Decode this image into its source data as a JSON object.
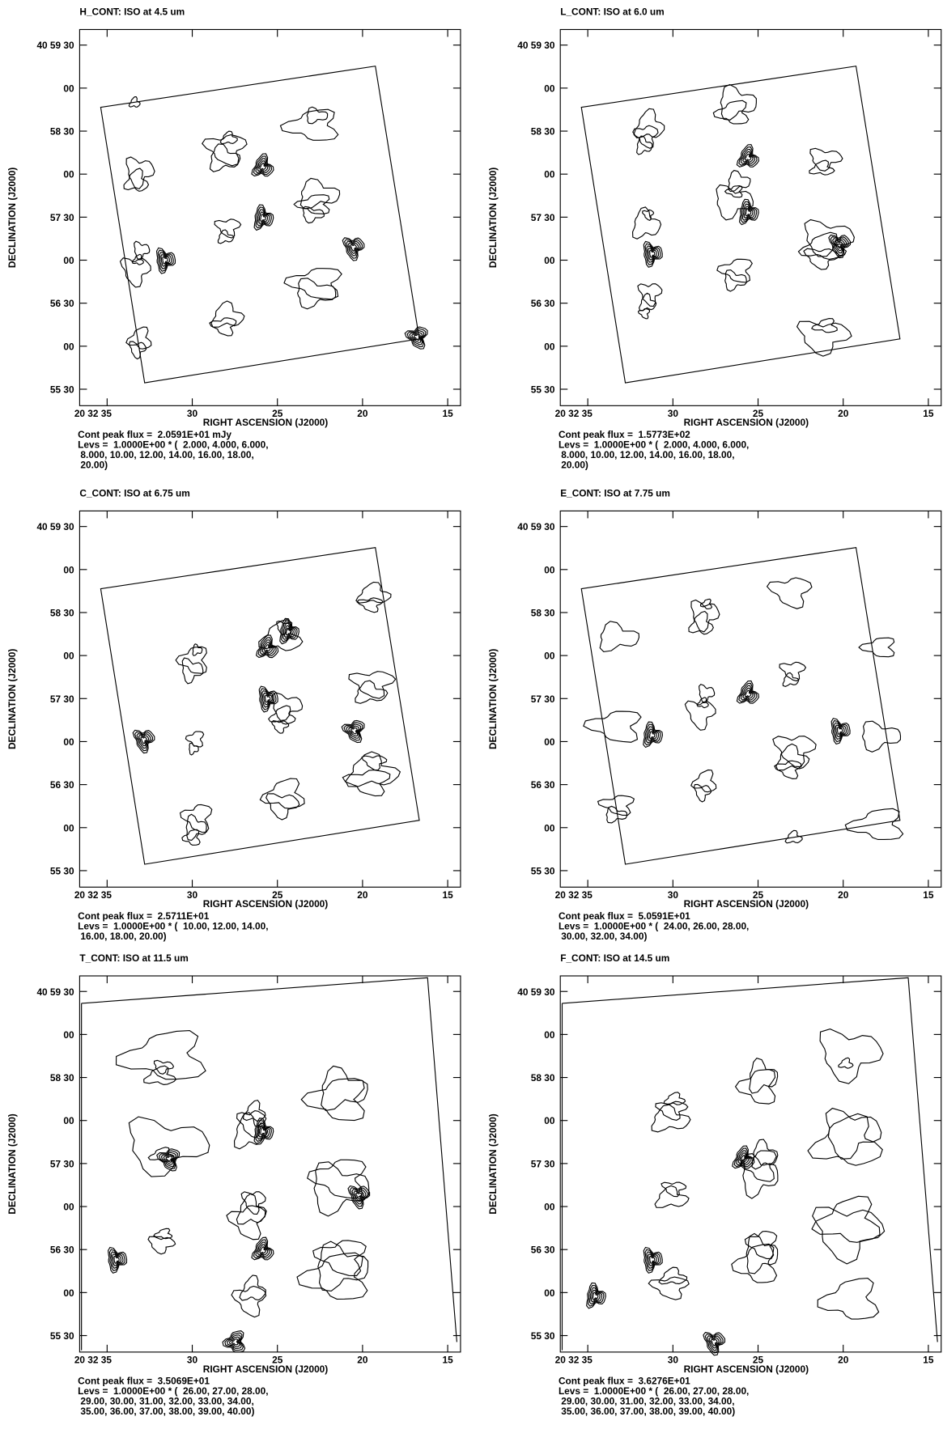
{
  "panels": [
    {
      "title": "H_CONT: ISO at 4.5 um",
      "y_axis_label": "DECLINATION (J2000)",
      "x_axis_label": "RIGHT ASCENSION (J2000)",
      "yticks": [
        "40 59 30",
        "00",
        "58 30",
        "00",
        "57 30",
        "00",
        "56 30",
        "00",
        "55 30"
      ],
      "xticks": [
        "20 32 35",
        "30",
        "25",
        "20",
        "15"
      ],
      "footer": [
        "Cont peak flux =  2.0591E+01 mJy",
        "Levs =  1.0000E+00 * (  2.000, 4.000, 6.000,",
        " 8.000, 10.00, 12.00, 14.00, 16.00, 18.00,",
        " 20.00)"
      ]
    },
    {
      "title": "L_CONT: ISO at 6.0 um",
      "y_axis_label": "DECLINATION (J2000)",
      "x_axis_label": "RIGHT ASCENSION (J2000)",
      "yticks": [
        "40 59 30",
        "00",
        "58 30",
        "00",
        "57 30",
        "00",
        "56 30",
        "00",
        "55 30"
      ],
      "xticks": [
        "20 32 35",
        "30",
        "25",
        "20",
        "15"
      ],
      "footer": [
        "Cont peak flux =  1.5773E+02",
        "Levs =  1.0000E+00 * (  2.000, 4.000, 6.000,",
        " 8.000, 10.00, 12.00, 14.00, 16.00, 18.00,",
        " 20.00)"
      ]
    },
    {
      "title": "C_CONT: ISO at 6.75 um",
      "y_axis_label": "DECLINATION (J2000)",
      "x_axis_label": "RIGHT ASCENSION (J2000)",
      "yticks": [
        "40 59 30",
        "00",
        "58 30",
        "00",
        "57 30",
        "00",
        "56 30",
        "00",
        "55 30"
      ],
      "xticks": [
        "20 32 35",
        "30",
        "25",
        "20",
        "15"
      ],
      "footer": [
        "Cont peak flux =  2.5711E+01",
        "Levs =  1.0000E+00 * (  10.00, 12.00, 14.00,",
        " 16.00, 18.00, 20.00)"
      ]
    },
    {
      "title": "E_CONT: ISO at 7.75 um",
      "y_axis_label": "DECLINATION (J2000)",
      "x_axis_label": "RIGHT ASCENSION (J2000)",
      "yticks": [
        "40 59 30",
        "00",
        "58 30",
        "00",
        "57 30",
        "00",
        "56 30",
        "00",
        "55 30"
      ],
      "xticks": [
        "20 32 35",
        "30",
        "25",
        "20",
        "15"
      ],
      "footer": [
        "Cont peak flux =  5.0591E+01",
        "Levs =  1.0000E+00 * (  24.00, 26.00, 28.00,",
        " 30.00, 32.00, 34.00)"
      ]
    },
    {
      "title": "T_CONT: ISO at 11.5 um",
      "y_axis_label": "DECLINATION (J2000)",
      "x_axis_label": "RIGHT ASCENSION (J2000)",
      "yticks": [
        "40 59 30",
        "00",
        "58 30",
        "00",
        "57 30",
        "00",
        "56 30",
        "00",
        "55 30"
      ],
      "xticks": [
        "20 32 35",
        "30",
        "25",
        "20",
        "15"
      ],
      "footer": [
        "Cont peak flux =  3.5069E+01",
        "Levs =  1.0000E+00 * (  26.00, 27.00, 28.00,",
        " 29.00, 30.00, 31.00, 32.00, 33.00, 34.00,",
        " 35.00, 36.00, 37.00, 38.00, 39.00, 40.00)"
      ]
    },
    {
      "title": "F_CONT: ISO at 14.5 um",
      "y_axis_label": "DECLINATION (J2000)",
      "x_axis_label": "RIGHT ASCENSION (J2000)",
      "yticks": [
        "40 59 30",
        "00",
        "58 30",
        "00",
        "57 30",
        "00",
        "56 30",
        "00",
        "55 30"
      ],
      "xticks": [
        "20 32 35",
        "30",
        "25",
        "20",
        "15"
      ],
      "footer": [
        "Cont peak flux =  3.6276E+01",
        "Levs =  1.0000E+00 * (  26.00, 27.00, 28.00,",
        " 29.00, 30.00, 31.00, 32.00, 33.00, 34.00,",
        " 35.00, 36.00, 37.00, 38.00, 39.00, 40.00)"
      ]
    }
  ]
}
